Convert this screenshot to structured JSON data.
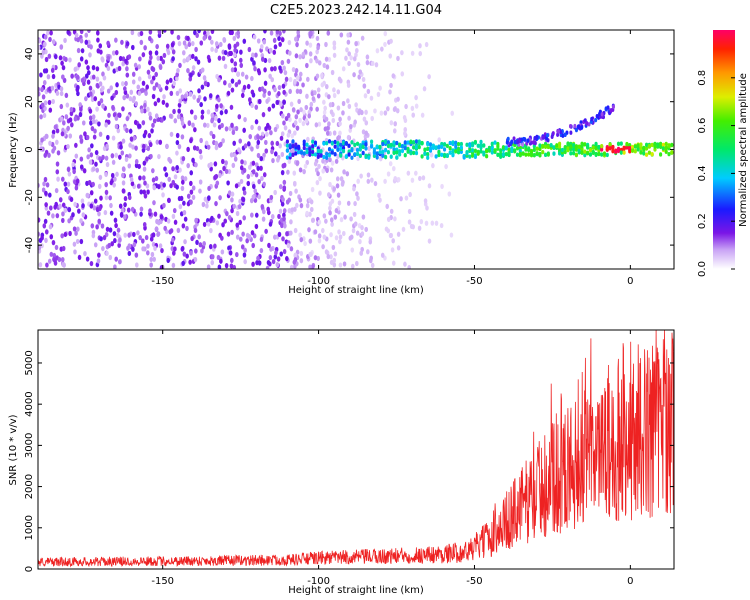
{
  "title": "C2E5.2023.242.14.11.G04",
  "chart_data": [
    {
      "type": "heatmap",
      "xlabel": "Height of straight line (km)",
      "ylabel": "Frequency (Hz)",
      "xlim": [
        -190,
        14
      ],
      "ylim": [
        -50,
        50
      ],
      "xticks": [
        -150,
        -100,
        -50,
        0
      ],
      "yticks": [
        -40,
        -20,
        0,
        20,
        40
      ],
      "colorbar": {
        "label": "Normalized spectral amplitude",
        "range": [
          0,
          1
        ],
        "ticks": [
          0.0,
          0.2,
          0.4,
          0.6,
          0.8
        ]
      },
      "features": {
        "noise_region_x": [
          -190,
          -110
        ],
        "fading_noise_x": [
          -110,
          -55
        ],
        "signal_band_frequency_hz": 0,
        "signal_band_start_x": -110,
        "peak_amplitude_x": [
          -10,
          0
        ],
        "secondary_branch": {
          "x": [
            -40,
            -5
          ],
          "frequency_hz": [
            3,
            18
          ]
        }
      }
    },
    {
      "type": "line",
      "xlabel": "Height of straight line (km)",
      "ylabel": "SNR (10 * v/v)",
      "xlim": [
        -190,
        14
      ],
      "ylim": [
        0,
        5800
      ],
      "xticks": [
        -150,
        -100,
        -50,
        0
      ],
      "yticks": [
        0,
        1000,
        2000,
        3000,
        4000,
        5000
      ],
      "series": [
        {
          "color": "#ee2222",
          "envelope": {
            "x": [
              -190,
              -150,
              -110,
              -100,
              -80,
              -60,
              -52,
              -45,
              -40,
              -35,
              -30,
              -25,
              -20,
              -15,
              -10,
              -5,
              0,
              5,
              10,
              14
            ],
            "y": [
              180,
              200,
              230,
              280,
              320,
              380,
              450,
              800,
              1200,
              1600,
              2000,
              2300,
              2600,
              2800,
              2900,
              3100,
              3300,
              3500,
              3700,
              3900
            ]
          }
        }
      ]
    }
  ]
}
